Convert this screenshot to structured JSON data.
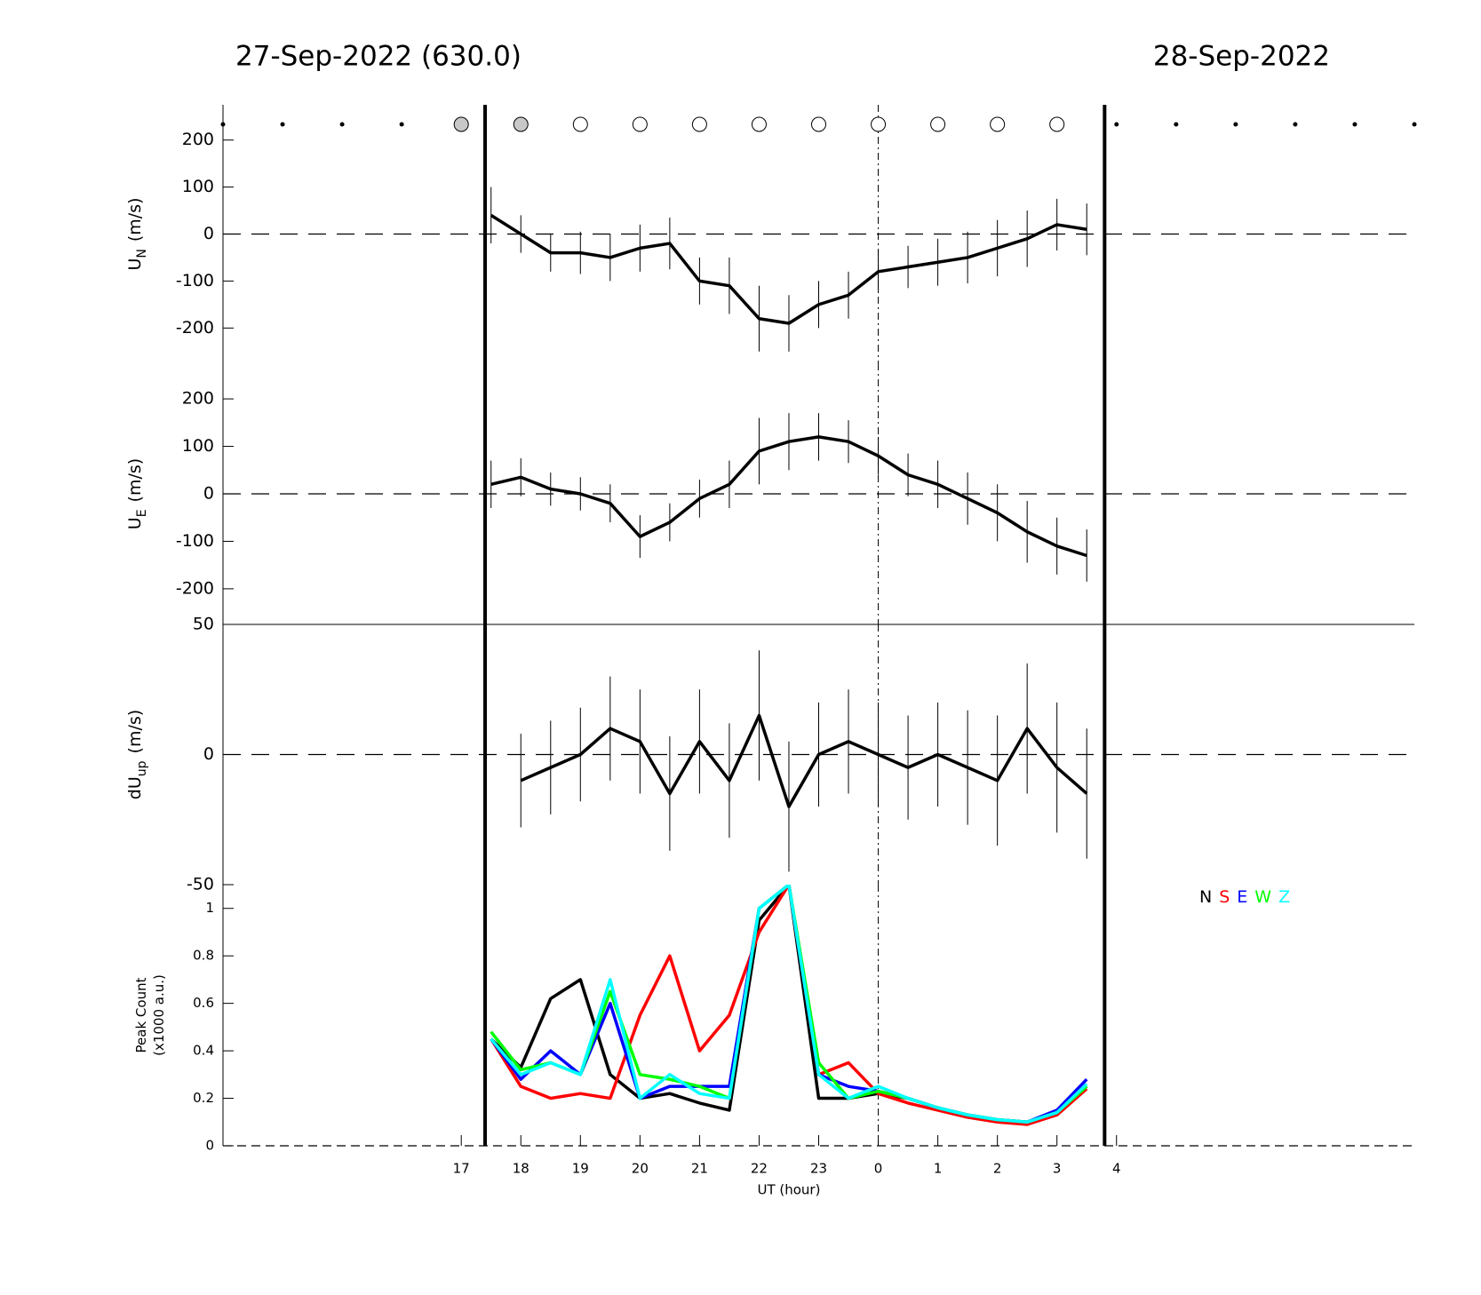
{
  "chart_data": [
    {
      "type": "line",
      "title": "27-Sep-2022 (630.0)",
      "subtitle": "28-Sep-2022",
      "ylabel": "U",
      "ylabel_sub": "N",
      "ylabel_unit": "(m/s)",
      "xlim": [
        13,
        33
      ],
      "ylim": [
        -275,
        275
      ],
      "yticks": [
        -200,
        -100,
        0,
        100,
        200
      ],
      "zero_line": true,
      "bounds": [
        17.4,
        27.8
      ],
      "ref_x": 24,
      "x": [
        17.5,
        18,
        18.5,
        19,
        19.5,
        20,
        20.5,
        21,
        21.5,
        22,
        22.5,
        23,
        23.5,
        24,
        24.5,
        25,
        25.5,
        26,
        26.5,
        27,
        27.5
      ],
      "series": [
        {
          "color": "#000000",
          "values": [
            40,
            0,
            -40,
            -40,
            -50,
            -30,
            -20,
            -100,
            -110,
            -180,
            -190,
            -150,
            -130,
            -80,
            -70,
            -60,
            -50,
            -30,
            -10,
            20,
            10
          ],
          "errors": [
            60,
            40,
            40,
            45,
            50,
            50,
            55,
            50,
            60,
            70,
            60,
            50,
            50,
            45,
            45,
            50,
            55,
            60,
            60,
            55,
            55
          ]
        }
      ]
    },
    {
      "type": "line",
      "ylabel": "U",
      "ylabel_sub": "E",
      "ylabel_unit": "(m/s)",
      "xlim": [
        13,
        33
      ],
      "ylim": [
        -275,
        275
      ],
      "yticks": [
        -200,
        -100,
        0,
        100,
        200
      ],
      "zero_line": true,
      "bounds": [
        17.4,
        27.8
      ],
      "ref_x": 24,
      "x": [
        17.5,
        18,
        18.5,
        19,
        19.5,
        20,
        20.5,
        21,
        21.5,
        22,
        22.5,
        23,
        23.5,
        24,
        24.5,
        25,
        25.5,
        26,
        26.5,
        27,
        27.5
      ],
      "series": [
        {
          "color": "#000000",
          "values": [
            20,
            35,
            10,
            0,
            -20,
            -90,
            -60,
            -10,
            20,
            90,
            110,
            120,
            110,
            80,
            40,
            20,
            -10,
            -40,
            -80,
            -110,
            -130
          ],
          "errors": [
            50,
            40,
            35,
            35,
            40,
            45,
            40,
            40,
            50,
            70,
            60,
            50,
            45,
            40,
            45,
            50,
            55,
            60,
            65,
            60,
            55
          ]
        }
      ]
    },
    {
      "type": "line",
      "ylabel": "dU",
      "ylabel_sub": "up",
      "ylabel_unit": "(m/s)",
      "xlim": [
        13,
        33
      ],
      "ylim": [
        -50,
        50
      ],
      "yticks": [
        -50,
        0,
        50
      ],
      "zero_line": true,
      "bounds": [
        17.4,
        27.8
      ],
      "ref_x": 24,
      "x": [
        17.5,
        18,
        18.5,
        19,
        19.5,
        20,
        20.5,
        21,
        21.5,
        22,
        22.5,
        23,
        23.5,
        24,
        24.5,
        25,
        25.5,
        26,
        26.5,
        27,
        27.5
      ],
      "series": [
        {
          "color": "#000000",
          "values": [
            null,
            -10,
            -5,
            0,
            10,
            5,
            -15,
            5,
            -10,
            15,
            -20,
            0,
            5,
            0,
            -5,
            0,
            -5,
            -10,
            10,
            -5,
            -15
          ],
          "errors": [
            null,
            18,
            18,
            18,
            20,
            20,
            22,
            20,
            22,
            25,
            25,
            20,
            20,
            20,
            20,
            20,
            22,
            25,
            25,
            25,
            25
          ]
        }
      ]
    },
    {
      "type": "line",
      "ylabel": "Peak Count",
      "ylabel_unit": "(x1000 a.u.)",
      "xlabel": "UT (hour)",
      "xlim": [
        13,
        33
      ],
      "ylim": [
        0,
        1.1
      ],
      "yticks": [
        0,
        0.2,
        0.4,
        0.6,
        0.8,
        1
      ],
      "xticks": [
        17,
        18,
        19,
        20,
        21,
        22,
        23,
        {
          "value": 24,
          "label": "0"
        },
        {
          "value": 25,
          "label": "1"
        },
        {
          "value": 26,
          "label": "2"
        },
        {
          "value": 27,
          "label": "3"
        },
        {
          "value": 28,
          "label": "4"
        }
      ],
      "zero_line": true,
      "bounds": [
        17.4,
        27.8
      ],
      "ref_x": 24,
      "x": [
        17.5,
        18,
        18.5,
        19,
        19.5,
        20,
        20.5,
        21,
        21.5,
        22,
        22.5,
        23,
        23.5,
        24,
        24.5,
        25,
        25.5,
        26,
        26.5,
        27,
        27.5
      ],
      "series": [
        {
          "name": "N",
          "color": "#000000",
          "values": [
            0.45,
            0.33,
            0.62,
            0.7,
            0.3,
            0.2,
            0.22,
            0.18,
            0.15,
            0.95,
            1.1,
            0.2,
            0.2,
            0.22,
            0.2,
            0.16,
            0.13,
            0.11,
            0.1,
            0.14,
            0.25
          ]
        },
        {
          "name": "S",
          "color": "#ff0000",
          "values": [
            0.45,
            0.25,
            0.2,
            0.22,
            0.2,
            0.55,
            0.8,
            0.4,
            0.55,
            0.9,
            1.1,
            0.3,
            0.35,
            0.22,
            0.18,
            0.15,
            0.12,
            0.1,
            0.09,
            0.13,
            0.24
          ]
        },
        {
          "name": "E",
          "color": "#0000ff",
          "values": [
            0.45,
            0.28,
            0.4,
            0.3,
            0.6,
            0.2,
            0.25,
            0.25,
            0.25,
            1.0,
            1.1,
            0.3,
            0.25,
            0.23,
            0.2,
            0.16,
            0.13,
            0.11,
            0.1,
            0.15,
            0.28
          ]
        },
        {
          "name": "W",
          "color": "#00ff00",
          "values": [
            0.48,
            0.32,
            0.35,
            0.3,
            0.65,
            0.3,
            0.28,
            0.25,
            0.2,
            1.0,
            1.1,
            0.35,
            0.2,
            0.23,
            0.2,
            0.16,
            0.13,
            0.11,
            0.1,
            0.14,
            0.25
          ]
        },
        {
          "name": "Z",
          "color": "#00ffff",
          "values": [
            0.45,
            0.3,
            0.35,
            0.3,
            0.7,
            0.2,
            0.3,
            0.22,
            0.2,
            1.0,
            1.1,
            0.3,
            0.2,
            0.25,
            0.2,
            0.16,
            0.13,
            0.11,
            0.1,
            0.14,
            0.26
          ]
        }
      ]
    }
  ]
}
